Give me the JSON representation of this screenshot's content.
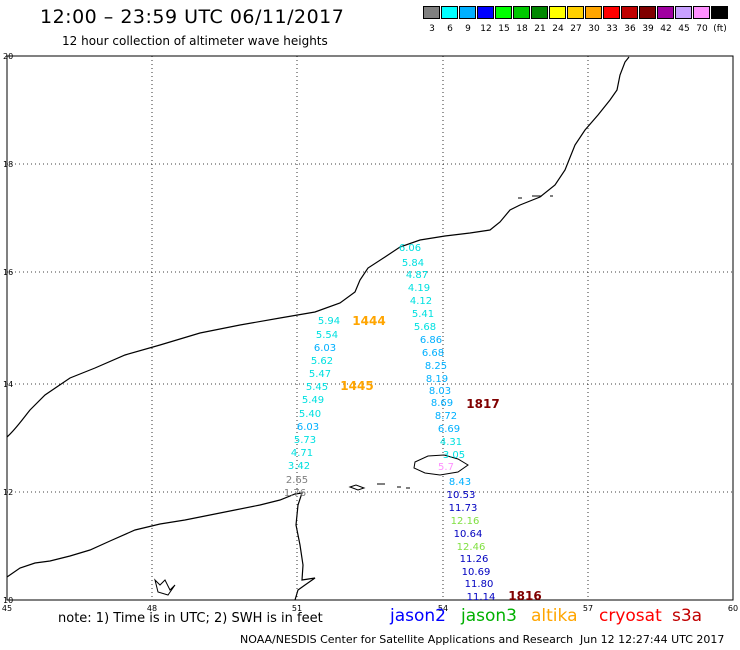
{
  "header": {
    "title": "12:00 – 23:59 UTC 06/11/2017",
    "subtitle": "12 hour collection of altimeter wave heights"
  },
  "legend": {
    "colors": [
      "#808080",
      "#00ffff",
      "#00b0ff",
      "#0000ff",
      "#00ff00",
      "#00c800",
      "#008800",
      "#ffff00",
      "#ffd000",
      "#ffa500",
      "#ff0000",
      "#c00000",
      "#800000",
      "#a000a0",
      "#c8a0ff",
      "#ff90ff",
      "#000000"
    ],
    "labels": [
      "3",
      "6",
      "9",
      "12",
      "15",
      "18",
      "21",
      "24",
      "27",
      "30",
      "33",
      "36",
      "39",
      "42",
      "45",
      "70",
      "(ft)"
    ]
  },
  "axes": {
    "lat_labels": [
      "20",
      "18",
      "16",
      "14",
      "12",
      "10"
    ],
    "lon_labels": [
      "45",
      "48",
      "51",
      "54",
      "57",
      "60"
    ]
  },
  "swh_points": [
    {
      "v": "6.06",
      "c": "#00e0e0"
    },
    {
      "v": "5.84",
      "c": "#00e0e0"
    },
    {
      "v": "4.87",
      "c": "#00e0e0"
    },
    {
      "v": "4.19",
      "c": "#00e0e0"
    },
    {
      "v": "4.12",
      "c": "#00e0e0"
    },
    {
      "v": "5.41",
      "c": "#00e0e0"
    },
    {
      "v": "5.68",
      "c": "#00e0e0"
    },
    {
      "v": "6.86",
      "c": "#00b0ff"
    },
    {
      "v": "6.68",
      "c": "#00b0ff"
    },
    {
      "v": "8.25",
      "c": "#00b0ff"
    },
    {
      "v": "8.19",
      "c": "#00b0ff"
    },
    {
      "v": "8.03",
      "c": "#00b0ff"
    },
    {
      "v": "8.69",
      "c": "#00b0ff"
    },
    {
      "v": "8.72",
      "c": "#00b0ff"
    },
    {
      "v": "6.69",
      "c": "#00b0ff"
    },
    {
      "v": "4.31",
      "c": "#00e0e0"
    },
    {
      "v": "3.05",
      "c": "#00e0e0"
    },
    {
      "v": "5.7",
      "c": "#ff90ff"
    },
    {
      "v": "8.43",
      "c": "#00b0ff"
    },
    {
      "v": "10.53",
      "c": "#0000c0"
    },
    {
      "v": "11.73",
      "c": "#0000c0"
    },
    {
      "v": "12.16",
      "c": "#80e040"
    },
    {
      "v": "10.64",
      "c": "#0000c0"
    },
    {
      "v": "12.46",
      "c": "#80e040"
    },
    {
      "v": "11.26",
      "c": "#0000c0"
    },
    {
      "v": "10.69",
      "c": "#0000c0"
    },
    {
      "v": "11.80",
      "c": "#0000c0"
    },
    {
      "v": "11.14",
      "c": "#0000c0"
    },
    {
      "v": "5.94",
      "c": "#00e0e0"
    },
    {
      "v": "5.54",
      "c": "#00e0e0"
    },
    {
      "v": "6.03",
      "c": "#00b0ff"
    },
    {
      "v": "5.62",
      "c": "#00e0e0"
    },
    {
      "v": "5.47",
      "c": "#00e0e0"
    },
    {
      "v": "5.45",
      "c": "#00e0e0"
    },
    {
      "v": "5.49",
      "c": "#00e0e0"
    },
    {
      "v": "5.40",
      "c": "#00e0e0"
    },
    {
      "v": "6.03",
      "c": "#00b0ff"
    },
    {
      "v": "5.73",
      "c": "#00e0e0"
    },
    {
      "v": "4.71",
      "c": "#00e0e0"
    },
    {
      "v": "3.42",
      "c": "#00e0e0"
    },
    {
      "v": "2.65",
      "c": "#808080"
    },
    {
      "v": "1.76",
      "c": "#808080"
    }
  ],
  "pass_times": [
    {
      "t": "1444",
      "c": "#ffa500"
    },
    {
      "t": "1445",
      "c": "#ffa500"
    },
    {
      "t": "1817",
      "c": "#800000"
    },
    {
      "t": "1816",
      "c": "#800000"
    }
  ],
  "footer": {
    "note": "note: 1) Time is in UTC; 2) SWH is in feet",
    "satellites": [
      {
        "name": "jason2",
        "color": "#0000ff"
      },
      {
        "name": "jason3",
        "color": "#00b000"
      },
      {
        "name": "altika",
        "color": "#ffa500"
      },
      {
        "name": "cryosat",
        "color": "#ff0000"
      },
      {
        "name": "s3a",
        "color": "#c00000"
      }
    ],
    "credit": "NOAA/NESDIS Center for Satellite Applications and Research",
    "timestamp": "Jun 12 12:27:44 UTC 2017"
  }
}
